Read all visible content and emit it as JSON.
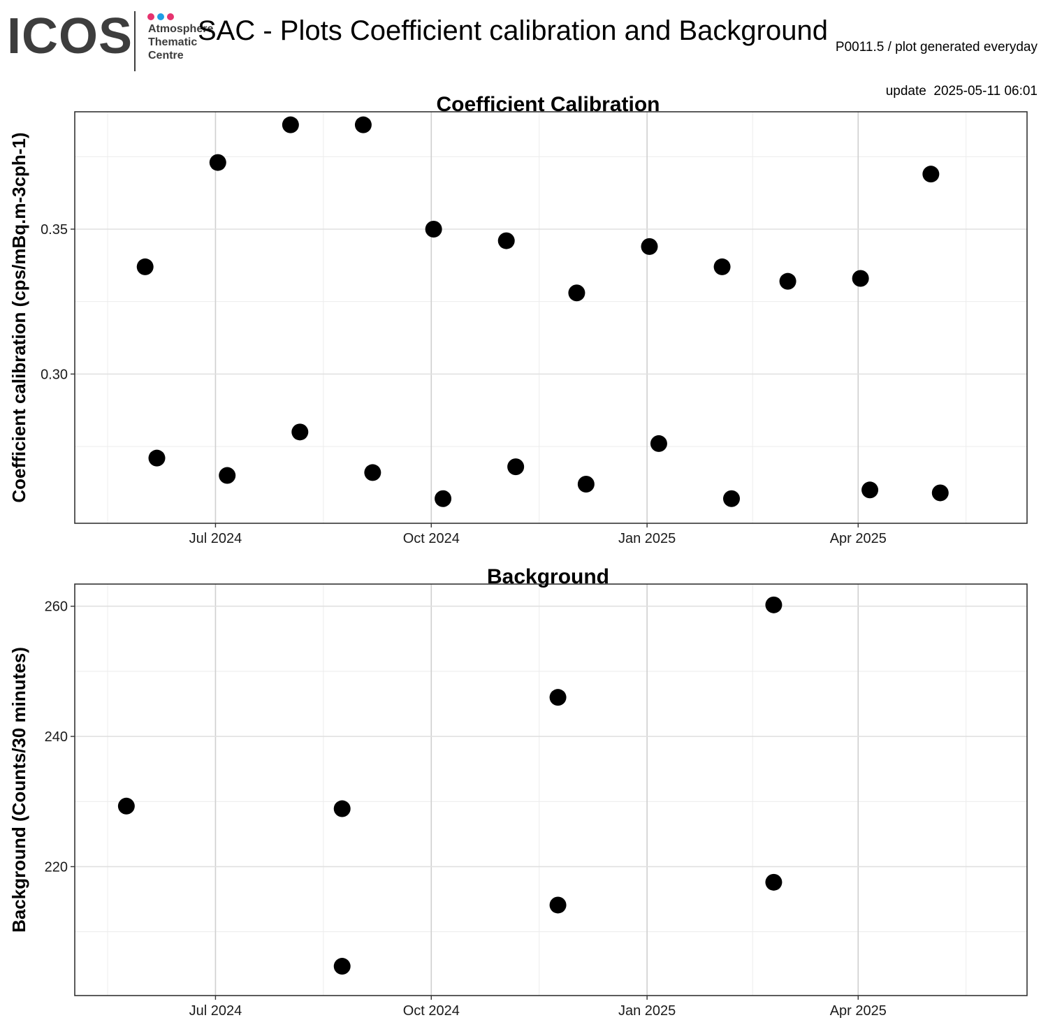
{
  "header": {
    "logo_text": "ICOS",
    "logo_lines": [
      "Atmosphere",
      "Thematic",
      "Centre"
    ],
    "logo_dot_colors": [
      "#e6336f",
      "#1f9ee6",
      "#e6336f"
    ],
    "title": "SAC - Plots Coefficient calibration and Background",
    "meta_line1": "P0011.5 / plot generated everyday",
    "meta_line2": "update  2025-05-11 06:01"
  },
  "chart_data": [
    {
      "type": "scatter",
      "title": "Coefficient Calibration",
      "xlabel": "",
      "ylabel": "Coefficient calibration (cps/mBq.m-3cph-1)",
      "xlim": [
        "2024-05-02",
        "2025-06-12"
      ],
      "ylim": [
        0.2485,
        0.3905
      ],
      "x_ticks": [
        "2024-07-01",
        "2024-10-01",
        "2025-01-01",
        "2025-04-01"
      ],
      "x_tick_labels": [
        "Jul 2024",
        "Oct 2024",
        "Jan 2025",
        "Apr 2025"
      ],
      "y_ticks": [
        0.3,
        0.35
      ],
      "y_tick_labels": [
        "0.30",
        "0.35"
      ],
      "grid": true,
      "marker_color": "#000000",
      "points": [
        {
          "x": "2024-06-01",
          "y": 0.337
        },
        {
          "x": "2024-06-06",
          "y": 0.271
        },
        {
          "x": "2024-07-02",
          "y": 0.373
        },
        {
          "x": "2024-07-06",
          "y": 0.265
        },
        {
          "x": "2024-08-02",
          "y": 0.386
        },
        {
          "x": "2024-08-06",
          "y": 0.28
        },
        {
          "x": "2024-09-02",
          "y": 0.386
        },
        {
          "x": "2024-09-06",
          "y": 0.266
        },
        {
          "x": "2024-10-02",
          "y": 0.35
        },
        {
          "x": "2024-10-06",
          "y": 0.257
        },
        {
          "x": "2024-11-02",
          "y": 0.346
        },
        {
          "x": "2024-11-06",
          "y": 0.268
        },
        {
          "x": "2024-12-02",
          "y": 0.328
        },
        {
          "x": "2024-12-06",
          "y": 0.262
        },
        {
          "x": "2025-01-02",
          "y": 0.344
        },
        {
          "x": "2025-01-06",
          "y": 0.276
        },
        {
          "x": "2025-02-02",
          "y": 0.337
        },
        {
          "x": "2025-02-06",
          "y": 0.257
        },
        {
          "x": "2025-03-02",
          "y": 0.332
        },
        {
          "x": "2025-04-02",
          "y": 0.333
        },
        {
          "x": "2025-04-06",
          "y": 0.26
        },
        {
          "x": "2025-05-02",
          "y": 0.369
        },
        {
          "x": "2025-05-06",
          "y": 0.259
        }
      ]
    },
    {
      "type": "scatter",
      "title": "Background",
      "xlabel": "",
      "ylabel": "Background (Counts/30 minutes)",
      "xlim": [
        "2024-05-02",
        "2025-06-12"
      ],
      "ylim": [
        200.2,
        263.4
      ],
      "x_ticks": [
        "2024-07-01",
        "2024-10-01",
        "2025-01-01",
        "2025-04-01"
      ],
      "x_tick_labels": [
        "Jul 2024",
        "Oct 2024",
        "Jan 2025",
        "Apr 2025"
      ],
      "y_ticks": [
        220,
        240,
        260
      ],
      "y_tick_labels": [
        "220",
        "240",
        "260"
      ],
      "grid": true,
      "marker_color": "#000000",
      "points": [
        {
          "x": "2024-05-24",
          "y": 229.3
        },
        {
          "x": "2024-08-24",
          "y": 228.9
        },
        {
          "x": "2024-08-24",
          "y": 204.7
        },
        {
          "x": "2024-11-24",
          "y": 246.0
        },
        {
          "x": "2024-11-24",
          "y": 214.1
        },
        {
          "x": "2025-02-24",
          "y": 260.2
        },
        {
          "x": "2025-02-24",
          "y": 217.6
        }
      ]
    }
  ]
}
